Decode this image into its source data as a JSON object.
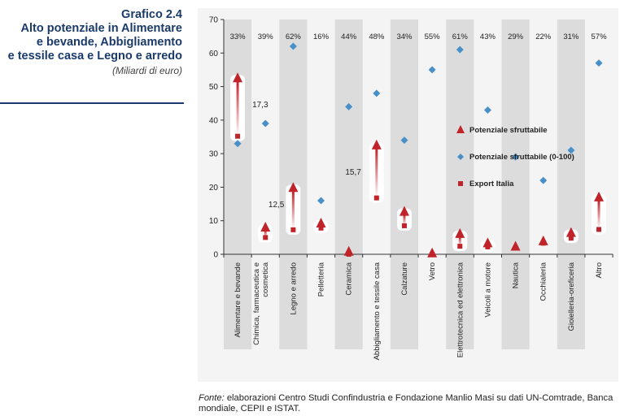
{
  "header": {
    "number": "Grafico 2.4",
    "title_lines": [
      "Alto potenziale in Alimentare",
      "e bevande, Abbigliamento",
      "e tessile casa e Legno e arredo"
    ],
    "subtitle": "(Miliardi di euro)"
  },
  "source": {
    "label": "Fonte:",
    "text": "elaborazioni Centro Studi Confindustria e Fondazione Manlio Masi su dati UN-Comtrade, Banca mondiale, CEPII e ISTAT."
  },
  "colors": {
    "potenziale": "#c0242a",
    "indice": "#4a90c8",
    "export": "#c0242a",
    "band": "#dcdcdc"
  },
  "chart_data": {
    "type": "scatter",
    "ylim": [
      0,
      70
    ],
    "yticks": [
      0,
      10,
      20,
      30,
      40,
      50,
      60,
      70
    ],
    "grid": false,
    "legend_position": "right",
    "categories": [
      "Alimentare e bevande",
      "Chimica, farmaceutica e cosmetica",
      "Legno e arredo",
      "Pelletteria",
      "Ceramica",
      "Abbigliamento e tessile casa",
      "Calzature",
      "Vetro",
      "Elettrotecnica ed elettronica",
      "Veicoli a motore",
      "Nautica",
      "Occhialeria",
      "Gioielleria-oreficeria",
      "Altro"
    ],
    "series": [
      {
        "name": "Potenziale sfruttabile",
        "marker": "triangle",
        "values": [
          52.5,
          8.0,
          19.8,
          9.2,
          0.8,
          32.5,
          12.7,
          0.3,
          6.1,
          3.3,
          2.3,
          3.9,
          6.4,
          17.0
        ]
      },
      {
        "name": "Potenziale sfruttabile (0-100)",
        "marker": "diamond",
        "values": [
          33,
          39,
          62,
          16,
          44,
          48,
          34,
          55,
          61,
          43,
          29,
          22,
          31,
          57
        ]
      },
      {
        "name": "Export Italia",
        "marker": "square",
        "values": [
          35.2,
          5.0,
          7.3,
          7.8,
          0.0,
          16.8,
          8.5,
          0.0,
          2.4,
          2.2,
          1.9,
          3.3,
          4.8,
          7.4
        ]
      }
    ],
    "index_labels": [
      "33%",
      "39%",
      "62%",
      "16%",
      "44%",
      "48%",
      "34%",
      "55%",
      "61%",
      "43%",
      "29%",
      "22%",
      "31%",
      "57%"
    ],
    "annotations": [
      {
        "category": "Alimentare e bevande",
        "text": "17,3"
      },
      {
        "category": "Legno e arredo",
        "text": "12,5"
      },
      {
        "category": "Abbigliamento e tessile casa",
        "text": "15,7"
      }
    ]
  }
}
